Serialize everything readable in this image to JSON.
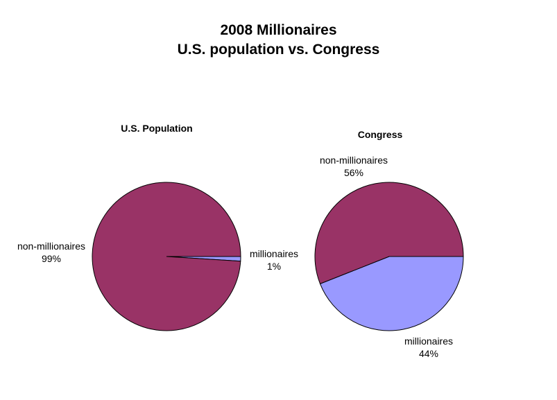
{
  "title": {
    "line1": "2008 Millionaires",
    "line2": "U.S. population vs. Congress"
  },
  "colors": {
    "non_millionaires": "#993366",
    "millionaires": "#9999FF",
    "outline": "#000000"
  },
  "chart_data": [
    {
      "type": "pie",
      "title": "U.S. Population",
      "slices": [
        {
          "label": "non-millionaires",
          "value": 99,
          "display": "99%"
        },
        {
          "label": "millionaires",
          "value": 1,
          "display": "1%"
        }
      ]
    },
    {
      "type": "pie",
      "title": "Congress",
      "slices": [
        {
          "label": "non-millionaires",
          "value": 56,
          "display": "56%"
        },
        {
          "label": "millionaires",
          "value": 44,
          "display": "44%"
        }
      ]
    }
  ]
}
